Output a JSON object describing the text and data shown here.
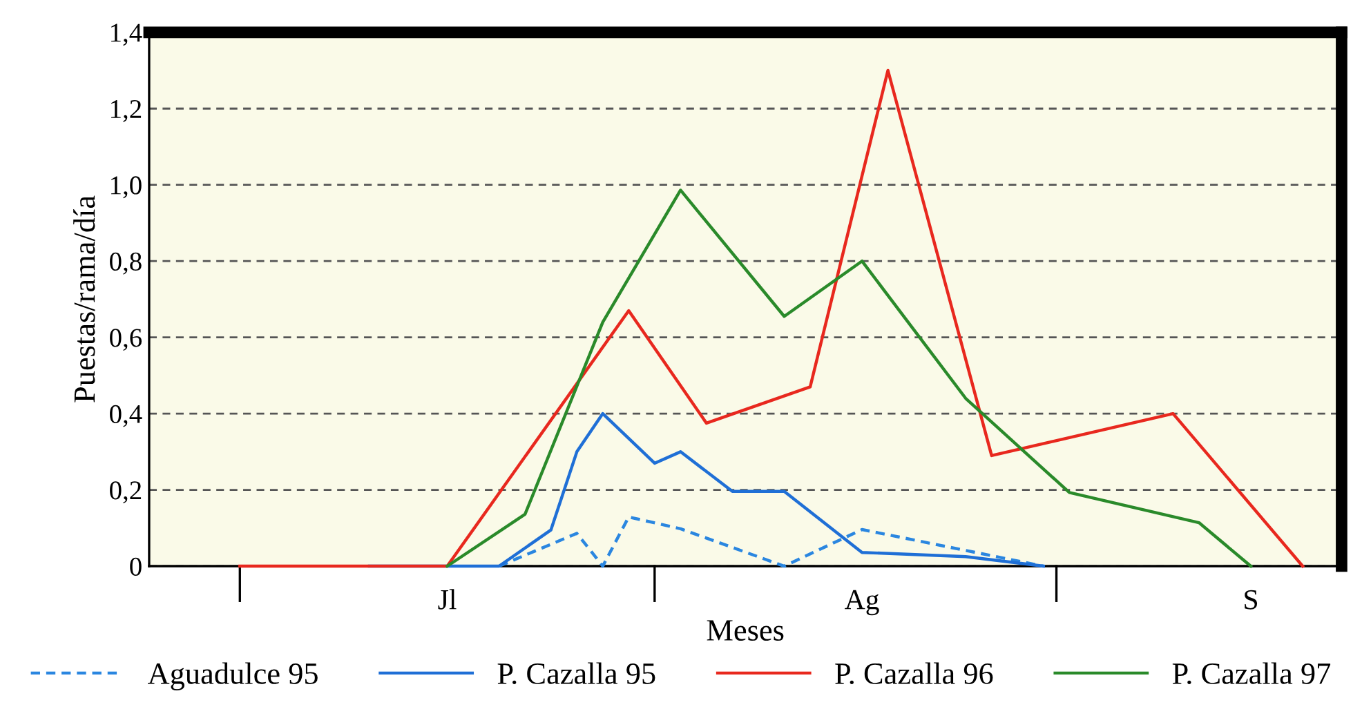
{
  "chart_data": {
    "type": "line",
    "xlabel": "Meses",
    "ylabel": "Puestas/rama/día",
    "categories": [
      null,
      null,
      null,
      null,
      null,
      null,
      null,
      null,
      null,
      null,
      null,
      "Jl",
      null,
      null,
      null,
      null,
      null,
      null,
      null,
      null,
      null,
      null,
      null,
      null,
      null,
      null,
      null,
      "Ag",
      null,
      null,
      null,
      null,
      null,
      null,
      null,
      null,
      null,
      null,
      null,
      null,
      null,
      null,
      "S",
      null,
      null,
      null
    ],
    "ylim": [
      0,
      1.4
    ],
    "yticks": [
      0,
      {
        "value": 0.2,
        "label": "0,2"
      },
      {
        "value": 0.4,
        "label": "0,4"
      },
      {
        "value": 0.6,
        "label": "0,6"
      },
      {
        "value": 0.8,
        "label": "0,8"
      },
      {
        "value": 1.0,
        "label": "1,0"
      },
      {
        "value": 1.2,
        "label": "1,2"
      },
      {
        "value": 1.4,
        "label": "1,4"
      }
    ],
    "grid": "y",
    "legend": "bottom",
    "marker": "none",
    "series": [
      {
        "name": "Aguadulce 95",
        "color": "#2a86e0",
        "line_style": "dashed",
        "values": [
          null,
          null,
          null,
          null,
          null,
          null,
          null,
          null,
          null,
          null,
          null,
          null,
          null,
          0,
          null,
          null,
          0.086,
          0,
          0.129,
          null,
          0.098,
          null,
          null,
          null,
          0,
          null,
          null,
          0.096,
          null,
          null,
          null,
          null,
          null,
          null,
          0,
          null,
          null,
          null,
          null,
          null,
          null,
          null,
          null,
          null,
          null,
          null
        ]
      },
      {
        "name": "P. Cazalla 95",
        "color": "#1f6fd6",
        "line_style": "solid",
        "values": [
          null,
          null,
          null,
          null,
          null,
          null,
          null,
          null,
          0,
          null,
          null,
          null,
          null,
          0,
          null,
          0.095,
          0.3,
          0.4,
          null,
          0.27,
          0.3,
          null,
          0.196,
          null,
          0.196,
          null,
          null,
          0.036,
          null,
          null,
          null,
          0.025,
          null,
          null,
          0,
          null,
          null,
          null,
          null,
          null,
          null,
          null,
          null,
          null,
          null,
          null
        ]
      },
      {
        "name": "P. Cazalla 96",
        "color": "#e8281e",
        "line_style": "solid",
        "values": [
          null,
          null,
          null,
          0,
          null,
          null,
          null,
          null,
          null,
          null,
          null,
          0,
          null,
          null,
          null,
          null,
          null,
          null,
          0.67,
          null,
          null,
          0.375,
          null,
          null,
          null,
          0.47,
          null,
          null,
          1.3,
          null,
          null,
          null,
          0.29,
          null,
          null,
          null,
          null,
          null,
          null,
          0.4,
          null,
          null,
          null,
          null,
          0,
          null
        ]
      },
      {
        "name": "P. Cazalla 97",
        "color": "#2a8a2a",
        "line_style": "solid",
        "values": [
          null,
          null,
          null,
          null,
          null,
          null,
          null,
          null,
          null,
          null,
          null,
          0,
          null,
          null,
          0.136,
          null,
          null,
          0.64,
          null,
          null,
          0.986,
          null,
          null,
          null,
          0.655,
          null,
          null,
          0.8,
          null,
          null,
          null,
          0.44,
          null,
          null,
          null,
          0.193,
          null,
          null,
          null,
          null,
          0.114,
          null,
          0,
          null,
          null,
          null
        ]
      }
    ]
  }
}
